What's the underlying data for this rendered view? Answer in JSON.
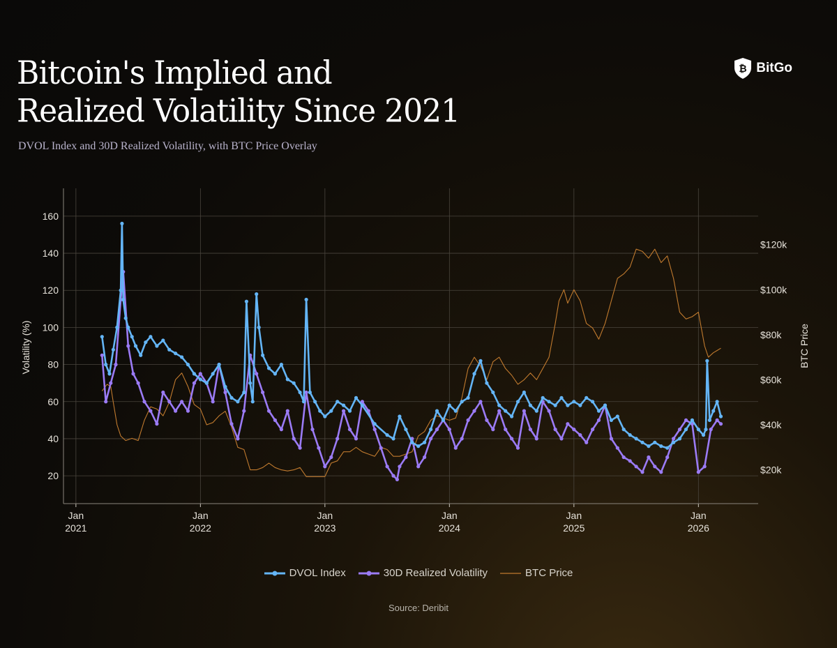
{
  "header": {
    "title_line1": "Bitcoin's Implied and",
    "title_line2": "Realized Volatility Since 2021",
    "subtitle": "DVOL Index and 30D Realized Volatility, with BTC Price Overlay",
    "brand": "BitGo",
    "brand_icon": "shield-bitcoin-icon"
  },
  "footer": {
    "source": "Source: Deribit"
  },
  "colors": {
    "dvol": "#64b5f6",
    "realized": "#9b7bf5",
    "btc": "#c07a2e",
    "grid": "#4a453d"
  },
  "chart_data": {
    "type": "line",
    "title": "Bitcoin's Implied and Realized Volatility Since 2021",
    "subtitle": "DVOL Index and 30D Realized Volatility, with BTC Price Overlay",
    "ylabel": "Volatility (%)",
    "y2label": "BTC Price",
    "x_tick_labels": [
      {
        "month": "Jan",
        "year": "2021"
      },
      {
        "month": "Jan",
        "year": "2022"
      },
      {
        "month": "Jan",
        "year": "2023"
      },
      {
        "month": "Jan",
        "year": "2024"
      },
      {
        "month": "Jan",
        "year": "2025"
      },
      {
        "month": "Jan",
        "year": "2026"
      }
    ],
    "xlim": [
      2020.9,
      2026.48
    ],
    "ylim": [
      5,
      175
    ],
    "y_ticks": [
      20,
      40,
      60,
      80,
      100,
      120,
      140,
      160
    ],
    "y2lim": [
      5000,
      145000
    ],
    "y2_ticks": [
      20000,
      40000,
      60000,
      80000,
      100000,
      120000
    ],
    "y2_tick_labels": [
      "$20k",
      "$40k",
      "$60k",
      "$80k",
      "$100k",
      "$120k"
    ],
    "legend": [
      "DVOL Index",
      "30D Realized Volatility",
      "BTC Price"
    ],
    "legend_position": "bottom",
    "grid": true,
    "series": [
      {
        "name": "DVOL Index",
        "x": [
          2021.21,
          2021.24,
          2021.27,
          2021.3,
          2021.33,
          2021.36,
          2021.37,
          2021.38,
          2021.4,
          2021.42,
          2021.45,
          2021.48,
          2021.52,
          2021.56,
          2021.6,
          2021.65,
          2021.7,
          2021.75,
          2021.8,
          2021.85,
          2021.9,
          2021.95,
          2022.0,
          2022.05,
          2022.1,
          2022.15,
          2022.2,
          2022.25,
          2022.3,
          2022.35,
          2022.37,
          2022.4,
          2022.42,
          2022.45,
          2022.47,
          2022.5,
          2022.55,
          2022.6,
          2022.65,
          2022.7,
          2022.75,
          2022.8,
          2022.83,
          2022.85,
          2022.88,
          2022.92,
          2022.96,
          2023.0,
          2023.05,
          2023.1,
          2023.15,
          2023.2,
          2023.25,
          2023.3,
          2023.4,
          2023.5,
          2023.55,
          2023.6,
          2023.65,
          2023.7,
          2023.75,
          2023.8,
          2023.85,
          2023.9,
          2023.95,
          2024.0,
          2024.05,
          2024.1,
          2024.15,
          2024.2,
          2024.25,
          2024.3,
          2024.35,
          2024.4,
          2024.45,
          2024.5,
          2024.55,
          2024.6,
          2024.65,
          2024.7,
          2024.75,
          2024.8,
          2024.85,
          2024.9,
          2024.95,
          2025.0,
          2025.05,
          2025.1,
          2025.15,
          2025.2,
          2025.25,
          2025.3,
          2025.35,
          2025.4,
          2025.45,
          2025.5,
          2025.55,
          2025.6,
          2025.65,
          2025.7,
          2025.75,
          2025.8,
          2025.85,
          2025.9,
          2025.95,
          2026.0,
          2026.04,
          2026.06,
          2026.07,
          2026.09,
          2026.12,
          2026.15,
          2026.18
        ],
        "y": [
          95,
          80,
          75,
          88,
          100,
          120,
          156,
          115,
          105,
          100,
          95,
          90,
          85,
          92,
          95,
          90,
          93,
          88,
          86,
          84,
          80,
          75,
          72,
          70,
          75,
          80,
          68,
          62,
          60,
          65,
          114,
          70,
          60,
          118,
          100,
          85,
          78,
          75,
          80,
          72,
          70,
          65,
          60,
          115,
          65,
          60,
          55,
          52,
          55,
          60,
          58,
          55,
          62,
          58,
          48,
          42,
          40,
          52,
          45,
          38,
          36,
          38,
          45,
          55,
          50,
          58,
          55,
          60,
          62,
          75,
          82,
          70,
          65,
          58,
          55,
          52,
          60,
          65,
          58,
          55,
          62,
          60,
          58,
          62,
          58,
          60,
          58,
          62,
          60,
          55,
          58,
          50,
          52,
          45,
          42,
          40,
          38,
          36,
          38,
          36,
          35,
          38,
          40,
          45,
          50,
          45,
          42,
          45,
          82,
          50,
          55,
          60,
          52
        ]
      },
      {
        "name": "30D Realized Volatility",
        "x": [
          2021.21,
          2021.24,
          2021.28,
          2021.32,
          2021.36,
          2021.38,
          2021.42,
          2021.46,
          2021.5,
          2021.55,
          2021.6,
          2021.65,
          2021.7,
          2021.75,
          2021.8,
          2021.85,
          2021.9,
          2021.95,
          2022.0,
          2022.05,
          2022.1,
          2022.15,
          2022.2,
          2022.25,
          2022.3,
          2022.35,
          2022.4,
          2022.45,
          2022.5,
          2022.55,
          2022.6,
          2022.65,
          2022.7,
          2022.75,
          2022.8,
          2022.85,
          2022.9,
          2022.95,
          2023.0,
          2023.05,
          2023.1,
          2023.15,
          2023.2,
          2023.25,
          2023.3,
          2023.35,
          2023.4,
          2023.45,
          2023.5,
          2023.55,
          2023.58,
          2023.6,
          2023.65,
          2023.7,
          2023.75,
          2023.8,
          2023.85,
          2023.9,
          2023.95,
          2024.0,
          2024.05,
          2024.1,
          2024.15,
          2024.2,
          2024.25,
          2024.3,
          2024.35,
          2024.4,
          2024.45,
          2024.5,
          2024.55,
          2024.6,
          2024.65,
          2024.7,
          2024.75,
          2024.8,
          2024.85,
          2024.9,
          2024.95,
          2025.0,
          2025.05,
          2025.1,
          2025.15,
          2025.2,
          2025.25,
          2025.3,
          2025.35,
          2025.4,
          2025.45,
          2025.5,
          2025.55,
          2025.6,
          2025.65,
          2025.7,
          2025.75,
          2025.8,
          2025.85,
          2025.9,
          2025.95,
          2026.0,
          2026.05,
          2026.1,
          2026.15,
          2026.18
        ],
        "y": [
          85,
          60,
          70,
          80,
          115,
          130,
          90,
          75,
          70,
          60,
          55,
          48,
          65,
          60,
          55,
          60,
          55,
          70,
          75,
          70,
          60,
          80,
          65,
          48,
          40,
          55,
          85,
          75,
          65,
          55,
          50,
          45,
          55,
          40,
          35,
          65,
          45,
          35,
          25,
          30,
          40,
          55,
          45,
          40,
          60,
          55,
          45,
          35,
          25,
          20,
          18,
          25,
          30,
          40,
          25,
          30,
          40,
          45,
          50,
          45,
          35,
          40,
          50,
          55,
          60,
          50,
          45,
          55,
          45,
          40,
          35,
          55,
          45,
          40,
          60,
          55,
          45,
          40,
          48,
          45,
          42,
          38,
          45,
          50,
          58,
          40,
          35,
          30,
          28,
          25,
          22,
          30,
          25,
          22,
          30,
          40,
          45,
          50,
          48,
          22,
          25,
          45,
          50,
          48
        ]
      },
      {
        "name": "BTC Price",
        "x": [
          2021.21,
          2021.25,
          2021.28,
          2021.3,
          2021.33,
          2021.36,
          2021.4,
          2021.45,
          2021.5,
          2021.55,
          2021.6,
          2021.65,
          2021.7,
          2021.75,
          2021.8,
          2021.85,
          2021.9,
          2021.95,
          2022.0,
          2022.05,
          2022.1,
          2022.15,
          2022.2,
          2022.25,
          2022.3,
          2022.35,
          2022.4,
          2022.45,
          2022.5,
          2022.55,
          2022.6,
          2022.65,
          2022.7,
          2022.75,
          2022.8,
          2022.85,
          2022.9,
          2022.95,
          2023.0,
          2023.05,
          2023.1,
          2023.15,
          2023.2,
          2023.25,
          2023.3,
          2023.35,
          2023.4,
          2023.45,
          2023.5,
          2023.55,
          2023.6,
          2023.65,
          2023.7,
          2023.75,
          2023.8,
          2023.85,
          2023.9,
          2023.95,
          2024.0,
          2024.05,
          2024.1,
          2024.15,
          2024.2,
          2024.25,
          2024.3,
          2024.35,
          2024.4,
          2024.45,
          2024.5,
          2024.55,
          2024.6,
          2024.65,
          2024.7,
          2024.75,
          2024.8,
          2024.85,
          2024.88,
          2024.92,
          2024.95,
          2025.0,
          2025.05,
          2025.1,
          2025.15,
          2025.2,
          2025.25,
          2025.3,
          2025.35,
          2025.4,
          2025.45,
          2025.5,
          2025.55,
          2025.6,
          2025.65,
          2025.7,
          2025.75,
          2025.8,
          2025.85,
          2025.9,
          2025.95,
          2026.0,
          2026.05,
          2026.08,
          2026.12,
          2026.15,
          2026.18
        ],
        "y": [
          55000,
          58000,
          57000,
          50000,
          40000,
          35000,
          33000,
          34000,
          33000,
          42000,
          48000,
          47000,
          44000,
          50000,
          60000,
          63000,
          57000,
          49000,
          47000,
          40000,
          41000,
          44000,
          46000,
          39000,
          30000,
          29000,
          20000,
          20000,
          21000,
          23000,
          21000,
          20000,
          19500,
          20000,
          21000,
          17000,
          17000,
          17000,
          17000,
          23000,
          24000,
          28000,
          28000,
          30000,
          28000,
          27000,
          26000,
          30000,
          29000,
          26000,
          26000,
          27000,
          28000,
          35000,
          37000,
          42000,
          44000,
          43000,
          42000,
          43000,
          52000,
          65000,
          70000,
          66000,
          60000,
          68000,
          70000,
          65000,
          62000,
          58000,
          60000,
          63000,
          60000,
          65000,
          70000,
          85000,
          95000,
          100000,
          94000,
          100000,
          95000,
          85000,
          83000,
          78000,
          85000,
          95000,
          105000,
          107000,
          110000,
          118000,
          117000,
          114000,
          118000,
          112000,
          115000,
          105000,
          90000,
          87000,
          88000,
          90000,
          75000,
          70000,
          72000,
          73000,
          74000
        ]
      }
    ]
  }
}
